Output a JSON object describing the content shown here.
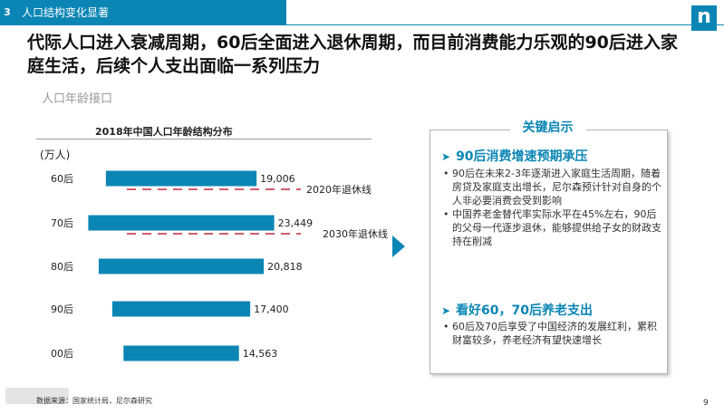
{
  "header": {
    "section_number": "3",
    "section_title": "人口结构变化显著",
    "logo_letter": "n"
  },
  "title": "代际人口进入衰减周期，60后全面进入退休周期，而目前消费能力乐观的90后进入家庭生活，后续个人支出面临一系列压力",
  "subtitle": "人口年龄接口",
  "colors": {
    "accent": "#0b86b4",
    "bar": "#0b86b4",
    "retire_line": "#c0283a"
  },
  "chart_data": {
    "type": "bar",
    "orientation": "horizontal",
    "title": "2018年中国人口年龄结构分布",
    "unit": "(万人)",
    "categories": [
      "60后",
      "70后",
      "80后",
      "90后",
      "00后"
    ],
    "values": [
      19006,
      23449,
      20818,
      17400,
      14563
    ],
    "value_labels": [
      "19,006",
      "23,449",
      "20,818",
      "17,400",
      "14,563"
    ],
    "bars_centered": true,
    "annotations": [
      {
        "label": "2020年退休线",
        "after_category": "60后"
      },
      {
        "label": "2030年退休线",
        "after_category": "70后"
      }
    ]
  },
  "insights": {
    "heading": "关键启示",
    "points": [
      {
        "title": "90后消费增速预期承压",
        "bullets": [
          "90后在未来2-3年逐渐进入家庭生活周期，随着房贷及家庭支出增长，尼尔森预计针对自身的个人非必要消费会受到影响",
          "中国养老金替代率实际水平在45%左右，90后的父母一代逐步退休，能够提供给子女的财政支持在削减"
        ]
      },
      {
        "title": "看好60，70后养老支出",
        "bullets": [
          "60后及70后享受了中国经济的发展红利，累积财富较多，养老经济有望快速增长"
        ]
      }
    ]
  },
  "footer": {
    "source": "数据来源：国家统计局，尼尔森研究",
    "page": "9"
  }
}
